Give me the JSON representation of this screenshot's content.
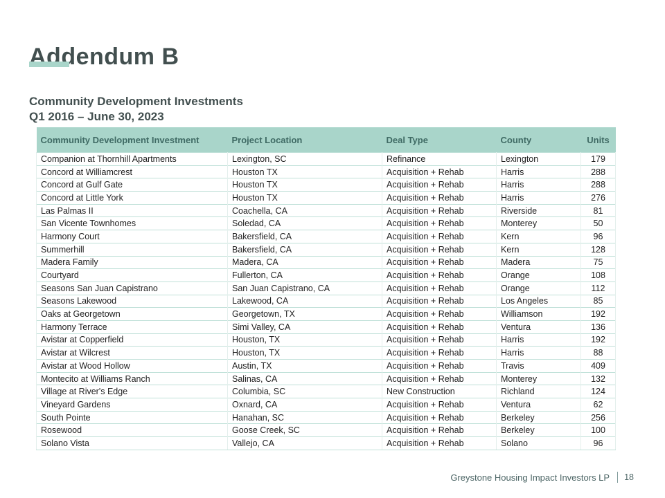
{
  "slide": {
    "title": "Addendum B",
    "subtitle_line1": "Community Development Investments",
    "subtitle_line2": "Q1 2016 – June 30, 2023"
  },
  "table": {
    "columns": [
      "Community Development Investment",
      "Project Location",
      "Deal Type",
      "County",
      "Units"
    ],
    "rows": [
      [
        "Companion at Thornhill Apartments",
        "Lexington, SC",
        "Refinance",
        "Lexington",
        "179"
      ],
      [
        "Concord at Williamcrest",
        "Houston TX",
        "Acquisition + Rehab",
        "Harris",
        "288"
      ],
      [
        "Concord at Gulf Gate",
        "Houston TX",
        "Acquisition + Rehab",
        "Harris",
        "288"
      ],
      [
        "Concord at Little York",
        "Houston TX",
        "Acquisition + Rehab",
        "Harris",
        "276"
      ],
      [
        "Las Palmas II",
        "Coachella, CA",
        "Acquisition + Rehab",
        "Riverside",
        "81"
      ],
      [
        "San Vicente Townhomes",
        "Soledad, CA",
        "Acquisition + Rehab",
        "Monterey",
        "50"
      ],
      [
        "Harmony Court",
        "Bakersfield, CA",
        "Acquisition + Rehab",
        "Kern",
        "96"
      ],
      [
        "Summerhill",
        "Bakersfield, CA",
        "Acquisition + Rehab",
        "Kern",
        "128"
      ],
      [
        "Madera Family",
        "Madera, CA",
        "Acquisition + Rehab",
        "Madera",
        "75"
      ],
      [
        "Courtyard",
        "Fullerton, CA",
        "Acquisition + Rehab",
        "Orange",
        "108"
      ],
      [
        "Seasons San Juan Capistrano",
        "San Juan Capistrano, CA",
        "Acquisition + Rehab",
        "Orange",
        "112"
      ],
      [
        "Seasons Lakewood",
        "Lakewood, CA",
        "Acquisition + Rehab",
        "Los Angeles",
        "85"
      ],
      [
        "Oaks at Georgetown",
        "Georgetown, TX",
        "Acquisition + Rehab",
        "Williamson",
        "192"
      ],
      [
        "Harmony Terrace",
        "Simi Valley, CA",
        "Acquisition + Rehab",
        "Ventura",
        "136"
      ],
      [
        "Avistar at Copperfield",
        "Houston, TX",
        "Acquisition + Rehab",
        "Harris",
        "192"
      ],
      [
        "Avistar at Wilcrest",
        "Houston, TX",
        "Acquisition + Rehab",
        "Harris",
        "88"
      ],
      [
        "Avistar at Wood Hollow",
        "Austin, TX",
        "Acquisition + Rehab",
        "Travis",
        "409"
      ],
      [
        "Montecito at Williams Ranch",
        "Salinas, CA",
        "Acquisition + Rehab",
        "Monterey",
        "132"
      ],
      [
        "Village at River's Edge",
        "Columbia, SC",
        "New Construction",
        "Richland",
        "124"
      ],
      [
        "Vineyard Gardens",
        "Oxnard, CA",
        "Acquisition + Rehab",
        "Ventura",
        "62"
      ],
      [
        "South Pointe",
        "Hanahan, SC",
        "Acquisition + Rehab",
        "Berkeley",
        "256"
      ],
      [
        "Rosewood",
        "Goose Creek, SC",
        "Acquisition + Rehab",
        "Berkeley",
        "100"
      ],
      [
        "Solano Vista",
        "Vallejo, CA",
        "Acquisition + Rehab",
        "Solano",
        "96"
      ]
    ]
  },
  "footer": {
    "company": "Greystone Housing Impact Investors LP",
    "page_number": "18"
  },
  "colors": {
    "accent_seafoam": "#a9d5ca",
    "header_text": "#3f6a64",
    "title_text": "#424f4f",
    "row_divider": "#bfe0d8",
    "column_divider": "#e4efec",
    "footer_text": "#4d6666"
  }
}
